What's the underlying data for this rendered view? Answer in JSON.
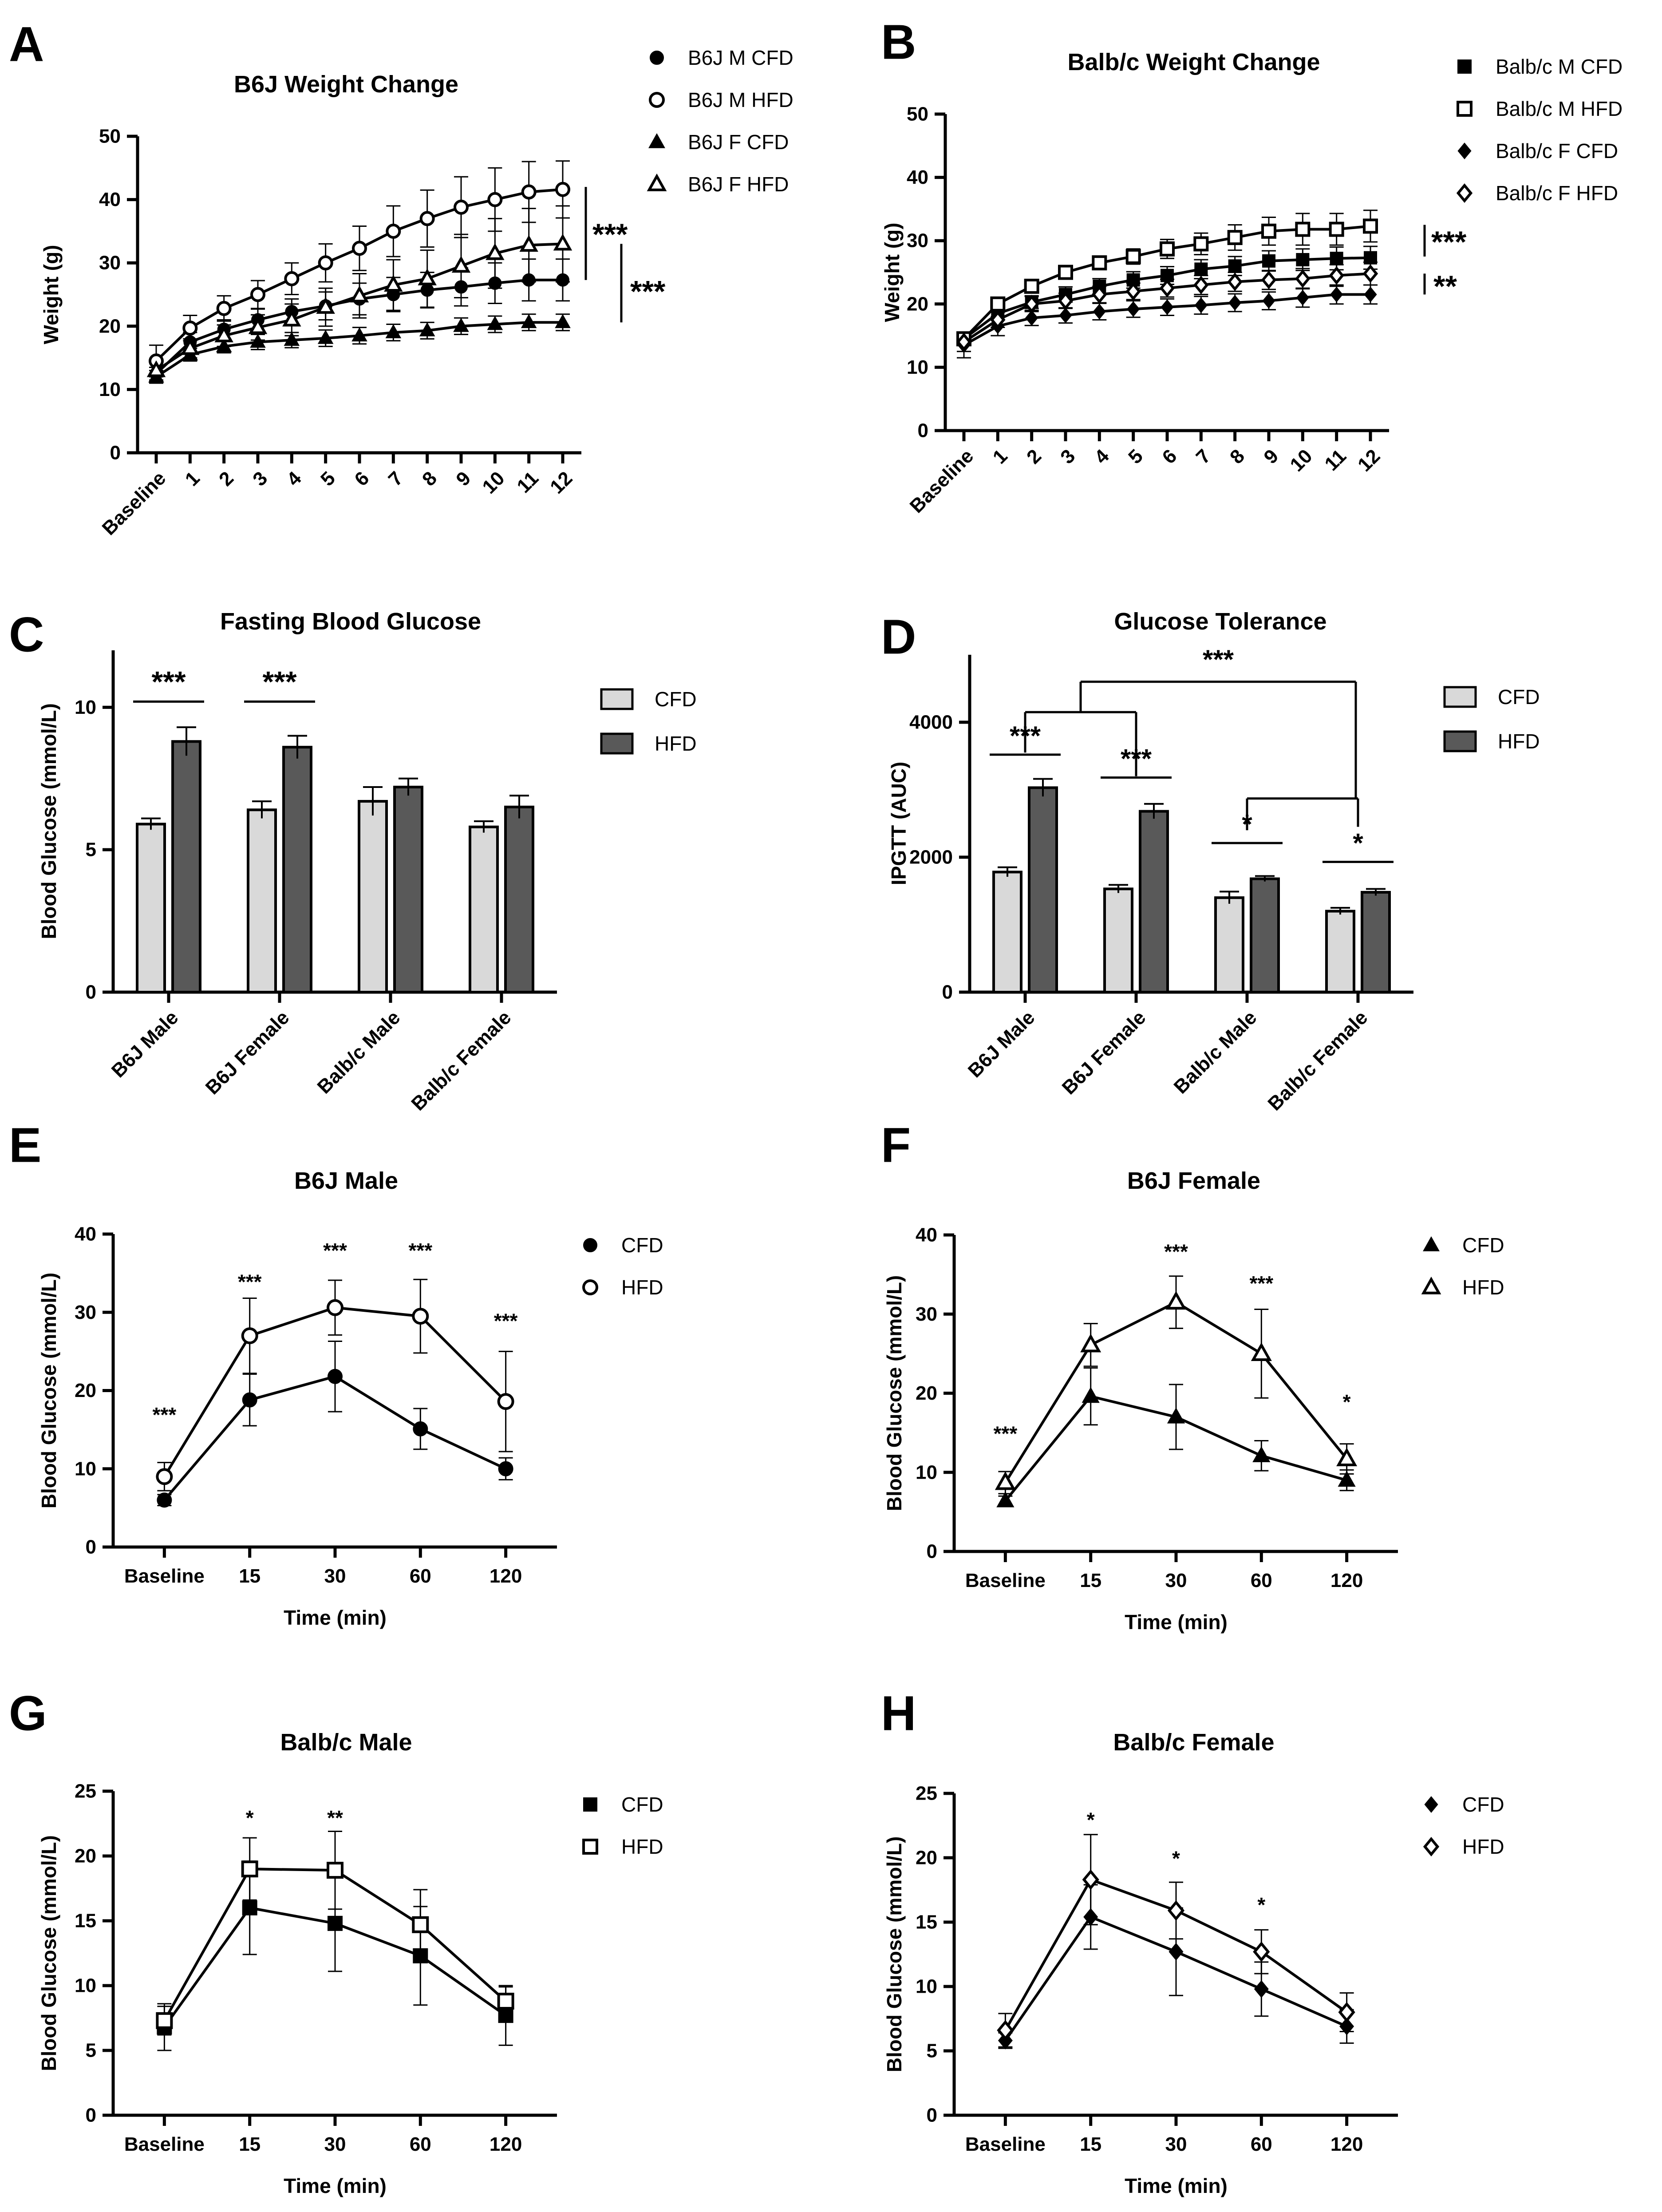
{
  "chart_data": [
    {
      "panel": "A",
      "type": "line",
      "title": "B6J  Weight  Change",
      "xlabel": "",
      "ylabel": "Weight (g)",
      "categories": [
        "Baseline",
        "1",
        "2",
        "3",
        "4",
        "5",
        "6",
        "7",
        "8",
        "9",
        "10",
        "11",
        "12"
      ],
      "ylim": [
        0,
        50
      ],
      "yticks": [
        0,
        10,
        20,
        30,
        40,
        50
      ],
      "x_rotated": true,
      "legend_position": "top-right",
      "series": [
        {
          "name": "B6J M CFD",
          "marker": "circle",
          "filled": true,
          "values": [
            12.5,
            17.5,
            19.5,
            21,
            22.3,
            23.2,
            24.3,
            25,
            25.7,
            26.2,
            26.8,
            27.3,
            27.3
          ],
          "errors": [
            1,
            1.5,
            1.5,
            1.7,
            2,
            2.2,
            2.5,
            2.7,
            2.8,
            3,
            3.2,
            3.3,
            3.3
          ]
        },
        {
          "name": "B6J M HFD",
          "marker": "circle",
          "filled": false,
          "values": [
            14.5,
            19.7,
            22.8,
            25,
            27.5,
            30,
            32.3,
            35,
            37,
            38.8,
            40,
            41.2,
            41.6
          ],
          "errors": [
            2.5,
            2,
            2,
            2.2,
            2.5,
            3,
            3.5,
            4,
            4.5,
            4.8,
            5,
            4.8,
            4.5
          ]
        },
        {
          "name": "B6J F CFD",
          "marker": "triangle",
          "filled": true,
          "values": [
            12,
            15.5,
            16.8,
            17.5,
            17.8,
            18.1,
            18.5,
            19,
            19.3,
            20,
            20.3,
            20.6,
            20.6
          ],
          "errors": [
            1,
            1,
            1,
            1.2,
            1.2,
            1.3,
            1.3,
            1.3,
            1.3,
            1.3,
            1.3,
            1.3,
            1.3
          ]
        },
        {
          "name": "B6J F HFD",
          "marker": "triangle",
          "filled": false,
          "values": [
            13,
            16.5,
            18.5,
            19.8,
            21,
            23,
            24.8,
            26.5,
            27.5,
            29.5,
            31.5,
            32.8,
            33
          ],
          "errors": [
            1.5,
            1.5,
            1.7,
            2,
            2.5,
            3,
            3.5,
            4,
            4.5,
            5,
            5.5,
            5.8,
            6
          ]
        }
      ],
      "brackets": [
        {
          "label": "***"
        },
        {
          "label": "***"
        }
      ]
    },
    {
      "panel": "B",
      "type": "line",
      "title": "Balb/c Weight Change",
      "xlabel": "",
      "ylabel": "Weight (g)",
      "categories": [
        "Baseline",
        "1",
        "2",
        "3",
        "4",
        "5",
        "6",
        "7",
        "8",
        "9",
        "10",
        "11",
        "12"
      ],
      "ylim": [
        0,
        50
      ],
      "yticks": [
        0,
        10,
        20,
        30,
        40,
        50
      ],
      "x_rotated": true,
      "legend_position": "top-right",
      "series": [
        {
          "name": "Balb/c M CFD",
          "marker": "square",
          "filled": true,
          "values": [
            14.5,
            18.5,
            20.3,
            21.5,
            22.8,
            23.8,
            24.5,
            25.5,
            26,
            26.8,
            27,
            27.2,
            27.3
          ],
          "errors": [
            1,
            1,
            1,
            1.2,
            1.2,
            1.3,
            1.4,
            1.5,
            1.5,
            1.6,
            1.7,
            1.8,
            1.8
          ]
        },
        {
          "name": "Balb/c M HFD",
          "marker": "square",
          "filled": false,
          "values": [
            14.5,
            20,
            22.8,
            25,
            26.5,
            27.5,
            28.7,
            29.5,
            30.5,
            31.5,
            31.8,
            31.8,
            32.3
          ],
          "errors": [
            1,
            1,
            1,
            1,
            1,
            1.2,
            1.5,
            1.7,
            2,
            2.2,
            2.5,
            2.5,
            2.5
          ]
        },
        {
          "name": "Balb/c F CFD",
          "marker": "diamond",
          "filled": true,
          "values": [
            13.5,
            16.5,
            17.8,
            18.2,
            18.8,
            19.2,
            19.5,
            19.8,
            20.2,
            20.5,
            21,
            21.5,
            21.5
          ],
          "errors": [
            2,
            1.5,
            1.2,
            1.2,
            1.3,
            1.3,
            1.3,
            1.4,
            1.4,
            1.4,
            1.5,
            1.5,
            1.5
          ]
        },
        {
          "name": "Balb/c F HFD",
          "marker": "diamond",
          "filled": false,
          "values": [
            14,
            17.5,
            20,
            20.5,
            21.5,
            22,
            22.5,
            23,
            23.5,
            23.8,
            24,
            24.5,
            24.8
          ],
          "errors": [
            1.5,
            1.2,
            1.2,
            1.2,
            1.3,
            1.3,
            1.4,
            1.5,
            1.5,
            1.5,
            1.6,
            1.7,
            1.8
          ]
        }
      ],
      "brackets": [
        {
          "label": "***"
        },
        {
          "label": "**"
        }
      ]
    },
    {
      "panel": "C",
      "type": "bar",
      "title": "Fasting Blood Glucose",
      "xlabel": "",
      "ylabel": "Blood Glucose (mmol/L)",
      "categories": [
        "B6J Male",
        "B6J Female",
        "Balb/c Male",
        "Balb/c Female"
      ],
      "ylim": [
        0,
        12
      ],
      "yticks": [
        0,
        5,
        10
      ],
      "x_rotated": true,
      "legend_position": "top-right",
      "series": [
        {
          "name": "CFD",
          "color": "#d9d9d9",
          "values": [
            5.9,
            6.4,
            6.7,
            5.8
          ],
          "errors": [
            0.2,
            0.3,
            0.5,
            0.2
          ]
        },
        {
          "name": "HFD",
          "color": "#595959",
          "values": [
            8.8,
            8.6,
            7.2,
            6.5
          ],
          "errors": [
            0.5,
            0.4,
            0.3,
            0.4
          ]
        }
      ],
      "brackets": [
        {
          "label": "***"
        },
        {
          "label": "***"
        }
      ]
    },
    {
      "panel": "D",
      "type": "bar",
      "title": "Glucose Tolerance",
      "xlabel": "",
      "ylabel": "IPGTT (AUC)",
      "categories": [
        "B6J Male",
        "B6J Female",
        "Balb/c Male",
        "Balb/c Female"
      ],
      "ylim": [
        0,
        5000
      ],
      "yticks": [
        0,
        2000,
        4000
      ],
      "x_rotated": true,
      "legend_position": "top-right",
      "series": [
        {
          "name": "CFD",
          "color": "#d9d9d9",
          "values": [
            1780,
            1530,
            1400,
            1200
          ],
          "errors": [
            70,
            60,
            90,
            50
          ]
        },
        {
          "name": "HFD",
          "color": "#595959",
          "values": [
            3030,
            2680,
            1680,
            1480
          ],
          "errors": [
            130,
            110,
            40,
            50
          ]
        }
      ],
      "brackets": [
        {
          "label": "***"
        },
        {
          "label": "***"
        },
        {
          "label": "*"
        },
        {
          "label": "*"
        },
        {
          "label": "***"
        }
      ]
    },
    {
      "panel": "E",
      "type": "line",
      "title": "B6J Male",
      "xlabel": "Time (min)",
      "ylabel": "Blood Glucose (mmol/L)",
      "categories": [
        "Baseline",
        "15",
        "30",
        "60",
        "120"
      ],
      "ylim": [
        0,
        40
      ],
      "yticks": [
        0,
        10,
        20,
        30,
        40
      ],
      "x_rotated": false,
      "legend_position": "top-right",
      "series": [
        {
          "name": "CFD",
          "marker": "circle",
          "filled": true,
          "values": [
            6,
            18.8,
            21.8,
            15.1,
            10
          ],
          "errors": [
            0.7,
            3.3,
            4.5,
            2.6,
            1.4
          ]
        },
        {
          "name": "HFD",
          "marker": "circle",
          "filled": false,
          "values": [
            9,
            27,
            30.6,
            29.5,
            18.6
          ],
          "errors": [
            1.8,
            4.8,
            3.5,
            4.7,
            6.4
          ]
        }
      ],
      "significance": [
        "***",
        "***",
        "***",
        "***",
        "***"
      ],
      "significance_y": [
        16,
        33,
        37,
        37,
        28
      ]
    },
    {
      "panel": "F",
      "type": "line",
      "title": "B6J Female",
      "xlabel": "Time (min)",
      "ylabel": "Blood Glucose (mmol/L)",
      "categories": [
        "Baseline",
        "15",
        "30",
        "60",
        "120"
      ],
      "ylim": [
        0,
        40
      ],
      "yticks": [
        0,
        10,
        20,
        30,
        40
      ],
      "x_rotated": false,
      "legend_position": "top-right",
      "series": [
        {
          "name": "CFD",
          "marker": "triangle",
          "filled": true,
          "values": [
            6.4,
            19.6,
            17,
            12.1,
            9
          ],
          "errors": [
            0.6,
            3.6,
            4.1,
            1.9,
            1.3
          ]
        },
        {
          "name": "HFD",
          "marker": "triangle",
          "filled": false,
          "values": [
            8.7,
            26.1,
            31.5,
            25,
            11.7
          ],
          "errors": [
            1.4,
            2.7,
            3.3,
            5.6,
            1.9
          ]
        }
      ],
      "significance": [
        "***",
        "",
        "***",
        "***",
        "*"
      ],
      "significance_y": [
        14,
        33,
        37,
        33,
        18
      ]
    },
    {
      "panel": "G",
      "type": "line",
      "title": "Balb/c Male",
      "xlabel": "Time (min)",
      "ylabel": "Blood Glucose (mmol/L)",
      "categories": [
        "Baseline",
        "15",
        "30",
        "60",
        "120"
      ],
      "ylim": [
        0,
        25
      ],
      "yticks": [
        0,
        5,
        10,
        15,
        20,
        25
      ],
      "x_rotated": false,
      "legend_position": "top-right",
      "series": [
        {
          "name": "CFD",
          "marker": "square",
          "filled": true,
          "values": [
            6.8,
            16,
            14.8,
            12.3,
            7.7
          ],
          "errors": [
            1.8,
            3.6,
            3.7,
            3.8,
            2.3
          ]
        },
        {
          "name": "HFD",
          "marker": "square",
          "filled": false,
          "values": [
            7.3,
            19,
            18.9,
            14.7,
            8.8
          ],
          "errors": [
            1.1,
            2.4,
            3,
            2.7,
            1.1
          ]
        }
      ],
      "significance": [
        "",
        "*",
        "**",
        "",
        ""
      ],
      "significance_y": [
        0,
        22.4,
        22.4,
        0,
        0
      ]
    },
    {
      "panel": "H",
      "type": "line",
      "title": "Balb/c Female",
      "xlabel": "Time (min)",
      "ylabel": "Blood Glucose (mmol/L)",
      "categories": [
        "Baseline",
        "15",
        "30",
        "60",
        "120"
      ],
      "ylim": [
        0,
        25
      ],
      "yticks": [
        0,
        5,
        10,
        15,
        20,
        25
      ],
      "x_rotated": false,
      "legend_position": "top-right",
      "series": [
        {
          "name": "CFD",
          "marker": "diamond",
          "filled": true,
          "values": [
            5.8,
            15.4,
            12.7,
            9.8,
            6.9
          ],
          "errors": [
            0.6,
            2.5,
            3.4,
            2.1,
            1.3
          ]
        },
        {
          "name": "HFD",
          "marker": "diamond",
          "filled": false,
          "values": [
            6.6,
            18.3,
            15.9,
            12.7,
            8
          ],
          "errors": [
            1.3,
            3.5,
            2.2,
            1.7,
            1.5
          ]
        }
      ],
      "significance": [
        "",
        "*",
        "*",
        "*",
        ""
      ],
      "significance_y": [
        0,
        22.4,
        19.4,
        15.8,
        0
      ]
    }
  ]
}
